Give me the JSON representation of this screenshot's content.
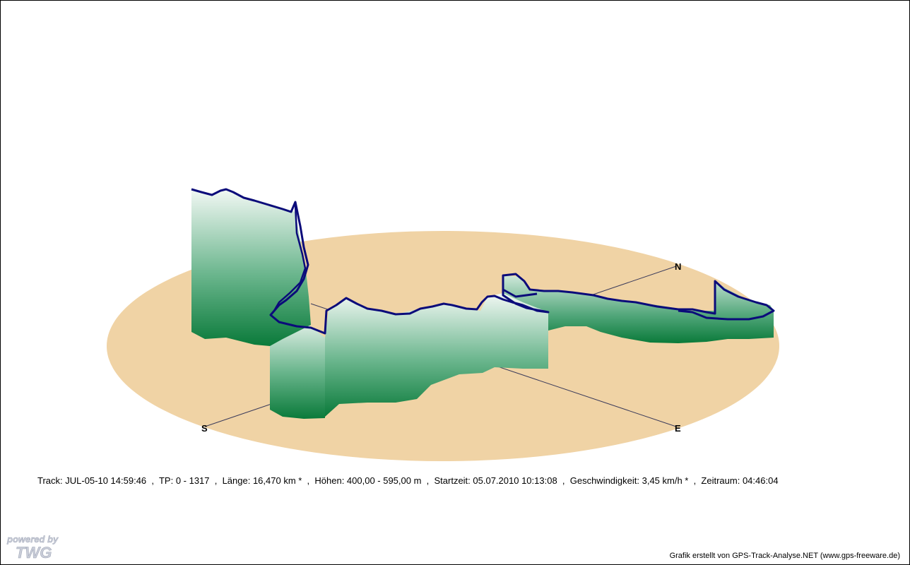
{
  "chart_data": {
    "type": "area",
    "view": "3d-track-profile",
    "track": "JUL-05-10 14:59:46",
    "tp": "0 - 1317",
    "laenge": "16,470 km *",
    "hoehen": "400,00 - 595,00 m",
    "startzeit": "05.07.2010 10:13:08",
    "geschwindigkeit": "3,45 km/h *",
    "zeitraum": "04:46:04",
    "compass": {
      "north": "N",
      "south": "S",
      "east": "E"
    },
    "colors": {
      "ground": "#f0d3a5",
      "wall_top": "#eef6f1",
      "wall_bottom": "#0c7a3c",
      "track_line": "#0b0b7a",
      "axis": "#333355"
    }
  },
  "info_line": "Track: JUL-05-10 14:59:46  ,  TP: 0 - 1317  ,  Länge: 16,470 km *  ,  Höhen: 400,00 - 595,00 m  ,  Startzeit: 05.07.2010 10:13:08  ,  Geschwindigkeit: 3,45 km/h *  ,  Zeitraum: 04:46:04",
  "credit": "Grafik erstellt von GPS-Track-Analyse.NET (www.gps-freeware.de)",
  "logo": {
    "line1": "powered by",
    "line2": "TWG"
  }
}
